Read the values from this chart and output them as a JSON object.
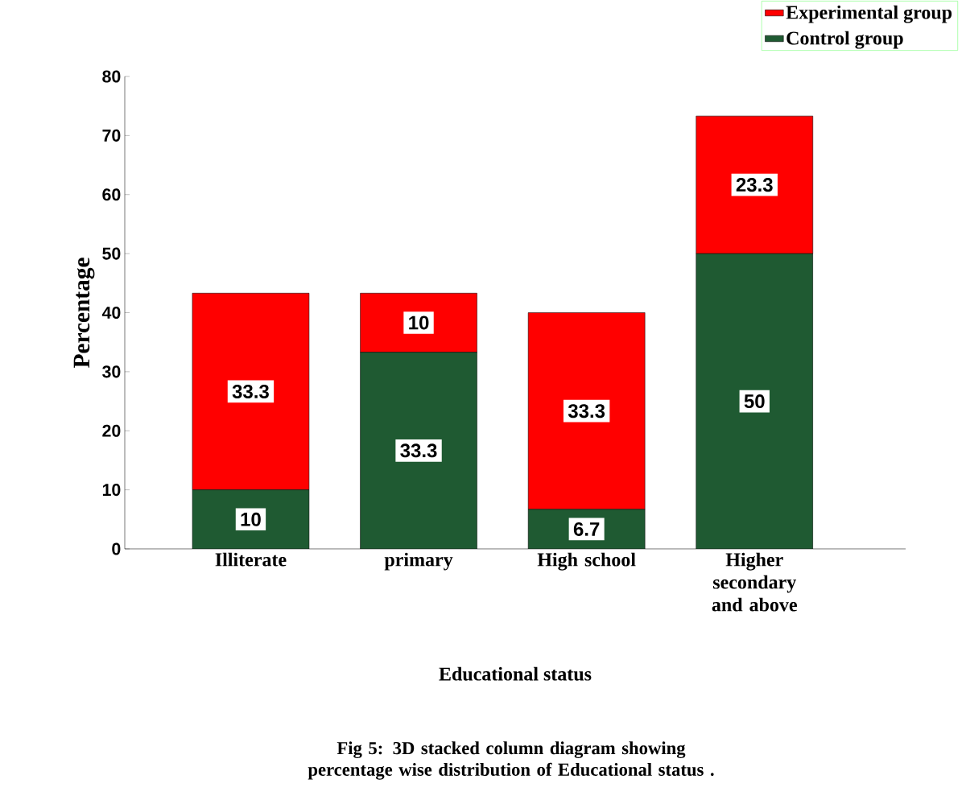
{
  "chart_data": {
    "type": "bar",
    "stacked": true,
    "xlabel": "Educational status",
    "ylabel": "Percentage",
    "categories": [
      "Illiterate",
      "primary",
      "High school",
      "Higher secondary and above"
    ],
    "series": [
      {
        "name": "Control group",
        "color": "#1f5a32",
        "values": [
          10,
          33.3,
          6.7,
          50
        ]
      },
      {
        "name": "Experimental group",
        "color": "#ff0000",
        "values": [
          33.3,
          10,
          33.3,
          23.3
        ]
      }
    ],
    "ylim": [
      0,
      80
    ],
    "yticks": [
      0,
      10,
      20,
      30,
      40,
      50,
      60,
      70,
      80
    ],
    "data_labels": true,
    "legend": "top right",
    "grid": false,
    "annotations": [
      "Fig 5: 3D stacked column diagram showing percentage wise distribution of Educational status ."
    ]
  }
}
